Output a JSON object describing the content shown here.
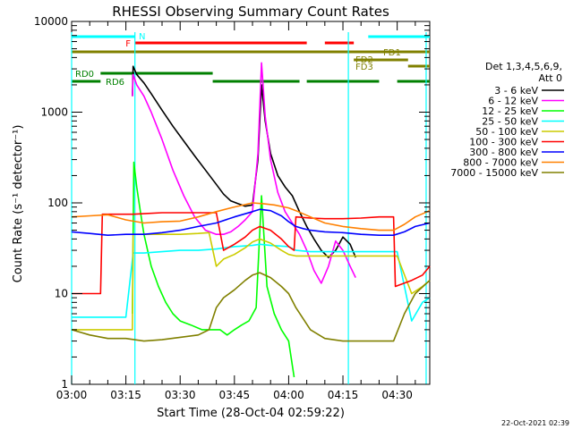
{
  "chart_data": {
    "type": "line",
    "title": "RHESSI Observing Summary Count Rates",
    "xlabel": "Start Time (28-Oct-04 02:59:22)",
    "ylabel": "Count Rate (s⁻¹ detector⁻¹)",
    "x_unit": "minutes after 03:00 UT",
    "xlim": [
      0,
      99
    ],
    "ylim": [
      1,
      10000
    ],
    "y_scale": "log",
    "grid": false,
    "legend_position": "right",
    "x_ticks": [
      {
        "value": 0,
        "label": "03:00"
      },
      {
        "value": 15,
        "label": "03:15"
      },
      {
        "value": 30,
        "label": "03:30"
      },
      {
        "value": 45,
        "label": "03:45"
      },
      {
        "value": 60,
        "label": "04:00"
      },
      {
        "value": 75,
        "label": "04:15"
      },
      {
        "value": 90,
        "label": "04:30"
      }
    ],
    "y_ticks": [
      {
        "value": 1,
        "label": "1"
      },
      {
        "value": 10,
        "label": "10"
      },
      {
        "value": 100,
        "label": "100"
      },
      {
        "value": 1000,
        "label": "1000"
      },
      {
        "value": 10000,
        "label": "10000"
      }
    ],
    "legend_header": [
      "Det 1,3,4,5,6,9,",
      "Att 0"
    ],
    "series": [
      {
        "name": "3 - 6 keV",
        "color": "#000000",
        "x": [
          16.8,
          17,
          18,
          20,
          22,
          25,
          28,
          31,
          34,
          37,
          40,
          42,
          44,
          46,
          48,
          50,
          51.5,
          52.5,
          53.5,
          55,
          57,
          59,
          61,
          63,
          65,
          67,
          69,
          71,
          73,
          75,
          77,
          78.5
        ],
        "y": [
          1500,
          3200,
          2600,
          2100,
          1600,
          1050,
          700,
          480,
          330,
          230,
          160,
          125,
          105,
          98,
          92,
          95,
          300,
          2000,
          800,
          350,
          200,
          150,
          120,
          80,
          55,
          40,
          30,
          25,
          30,
          42,
          35,
          25
        ]
      },
      {
        "name": "6 - 12 keV",
        "color": "#ff00ff",
        "x": [
          16.8,
          17,
          18,
          20,
          22,
          25,
          28,
          31,
          34,
          37,
          40,
          42,
          44,
          46,
          48,
          50,
          51.5,
          52.5,
          53.5,
          55,
          57,
          59,
          61,
          63,
          65,
          67,
          69,
          71,
          73,
          75,
          77,
          78.5
        ],
        "y": [
          1500,
          2600,
          2000,
          1500,
          1000,
          500,
          230,
          120,
          70,
          50,
          45,
          45,
          48,
          55,
          65,
          80,
          350,
          3500,
          900,
          300,
          130,
          80,
          60,
          45,
          30,
          18,
          13,
          20,
          38,
          30,
          20,
          15
        ]
      },
      {
        "name": "12 - 25 keV",
        "color": "#00ff00",
        "x": [
          16.8,
          17.2,
          18,
          19,
          20,
          22,
          24,
          26,
          28,
          30,
          33,
          36,
          39,
          41,
          43,
          45,
          47,
          49,
          51,
          52.5,
          54,
          56,
          58,
          60,
          61.5
        ],
        "y": [
          6,
          280,
          150,
          80,
          45,
          20,
          12,
          8,
          6,
          5,
          4.5,
          4,
          4,
          4,
          3.5,
          4,
          4.5,
          5,
          7,
          120,
          12,
          6,
          4,
          3,
          1.2
        ]
      },
      {
        "name": "25 - 50 keV",
        "color": "#00ffff",
        "x": [
          0,
          10,
          15,
          17,
          20,
          25,
          30,
          35,
          40,
          45,
          50,
          52,
          55,
          60,
          62,
          66,
          70,
          75,
          80,
          85,
          90,
          94,
          97,
          99
        ],
        "y": [
          5.5,
          5.5,
          5.5,
          28,
          28,
          29,
          30,
          30,
          31,
          33,
          34,
          35,
          34,
          33,
          30,
          29,
          29,
          29,
          29,
          29,
          29,
          5,
          8,
          9
        ]
      },
      {
        "name": "50 - 100 keV",
        "color": "#cccc00",
        "x": [
          0,
          16.8,
          17,
          20,
          25,
          30,
          35,
          38,
          40,
          42,
          45,
          48,
          50,
          52,
          55,
          58,
          60,
          62,
          66,
          70,
          75,
          80,
          85,
          90,
          94,
          97,
          99
        ],
        "y": [
          4,
          4,
          45,
          45,
          45,
          45,
          46,
          47,
          20,
          24,
          27,
          32,
          37,
          40,
          36,
          30,
          27,
          26,
          26,
          26,
          26,
          26,
          26,
          26,
          10,
          12,
          14
        ]
      },
      {
        "name": "100 - 300 keV",
        "color": "#ff0000",
        "x": [
          0,
          8,
          8.5,
          16.8,
          17,
          20,
          25,
          30,
          35,
          40,
          42,
          45,
          48,
          50,
          52,
          55,
          58,
          60,
          61.5,
          62,
          66,
          70,
          75,
          80,
          85,
          89,
          89.5,
          94,
          97,
          99
        ],
        "y": [
          10,
          10,
          75,
          75,
          75,
          76,
          78,
          78,
          78,
          78,
          30,
          35,
          42,
          50,
          55,
          50,
          40,
          33,
          30,
          70,
          68,
          67,
          67,
          68,
          70,
          70,
          12,
          14,
          16,
          20
        ]
      },
      {
        "name": "300 - 800 keV",
        "color": "#0000ff",
        "x": [
          0,
          5,
          10,
          15,
          20,
          25,
          30,
          35,
          40,
          45,
          50,
          52,
          55,
          58,
          60,
          62,
          64,
          66,
          70,
          75,
          80,
          85,
          89,
          92,
          95,
          99
        ],
        "y": [
          48,
          46,
          44,
          45,
          45,
          47,
          50,
          55,
          60,
          70,
          80,
          85,
          82,
          72,
          62,
          55,
          52,
          50,
          48,
          47,
          45,
          44,
          44,
          48,
          55,
          60
        ]
      },
      {
        "name": "800 - 7000 keV",
        "color": "#ff8000",
        "x": [
          0,
          5,
          10,
          15,
          20,
          25,
          30,
          35,
          40,
          45,
          50,
          53,
          56,
          60,
          62,
          66,
          70,
          75,
          80,
          85,
          89,
          92,
          95,
          99
        ],
        "y": [
          70,
          72,
          74,
          65,
          60,
          62,
          63,
          70,
          80,
          90,
          100,
          98,
          95,
          88,
          82,
          70,
          60,
          55,
          52,
          50,
          50,
          58,
          70,
          82
        ]
      },
      {
        "name": "7000 - 15000 keV",
        "color": "#808000",
        "x": [
          0,
          5,
          10,
          15,
          20,
          25,
          30,
          35,
          38,
          40,
          42,
          45,
          48,
          50,
          52,
          55,
          58,
          60,
          62,
          66,
          70,
          75,
          80,
          85,
          89,
          92,
          95,
          99
        ],
        "y": [
          4,
          3.5,
          3.2,
          3.2,
          3,
          3.1,
          3.3,
          3.5,
          4,
          7,
          9,
          11,
          14,
          16,
          17,
          15,
          12,
          10,
          7,
          4,
          3.2,
          3,
          3,
          3,
          3,
          6,
          10,
          14
        ]
      }
    ],
    "annotations": {
      "flags": [
        {
          "label": "N",
          "color": "#00ffff",
          "segments": [
            [
              0,
              17.5
            ],
            [
              82,
              99
            ]
          ]
        },
        {
          "label": "F",
          "color": "#ff0000",
          "segments": [
            [
              17.5,
              65
            ],
            [
              70,
              78
            ]
          ]
        },
        {
          "label": "FD1",
          "color": "#808000",
          "segments": [
            [
              0,
              99
            ]
          ]
        },
        {
          "label": "FD2",
          "color": "#808000",
          "segments": [
            [
              78,
              93
            ]
          ]
        },
        {
          "label": "FD3",
          "color": "#808000",
          "segments": [
            [
              93,
              99
            ]
          ]
        },
        {
          "label": "RD0",
          "color": "#008000",
          "segments": [
            [
              8,
              39
            ]
          ]
        },
        {
          "label": "RD6",
          "color": "#008000",
          "segments": [
            [
              0,
              8
            ],
            [
              39,
              63
            ],
            [
              65,
              85
            ],
            [
              90,
              99
            ]
          ]
        }
      ],
      "vertical_lines": [
        {
          "x": 0,
          "color": "#00ffff"
        },
        {
          "x": 17.5,
          "color": "#00ffff"
        },
        {
          "x": 76.5,
          "color": "#00ffff"
        },
        {
          "x": 98,
          "color": "#00ffff"
        }
      ]
    },
    "footer_timestamp": "22-Oct-2021 02:39"
  }
}
